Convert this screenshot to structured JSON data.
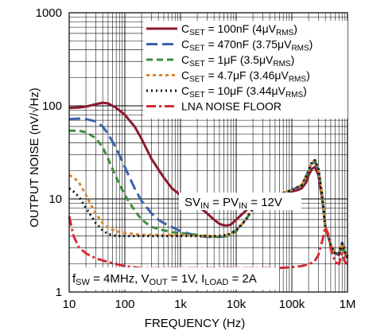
{
  "chart_data": {
    "type": "line",
    "xlabel": "FREQUENCY (Hz)",
    "ylabel": "OUTPUT NOISE (nV/√Hz)",
    "xscale": "log",
    "yscale": "log",
    "xlim": [
      10,
      1000000
    ],
    "ylim": [
      1,
      1000
    ],
    "grid": true,
    "x_tick_labels": [
      "10",
      "100",
      "1k",
      "10k",
      "100k",
      "1M"
    ],
    "x_tick_values": [
      10,
      100,
      1000,
      10000,
      100000,
      1000000
    ],
    "y_tick_labels": [
      "1",
      "10",
      "100",
      "1000"
    ],
    "y_tick_values": [
      1,
      10,
      100,
      1000
    ],
    "legend_position": "top-right",
    "annotations": {
      "supply": {
        "parts": [
          {
            "t": "SV",
            "s": "n"
          },
          {
            "t": "IN",
            "s": "sub"
          },
          {
            "t": " = PV",
            "s": "n"
          },
          {
            "t": "IN",
            "s": "sub"
          },
          {
            "t": " = 12V",
            "s": "n"
          }
        ]
      },
      "conditions": {
        "parts": [
          {
            "t": "f",
            "s": "n"
          },
          {
            "t": "SW",
            "s": "sub"
          },
          {
            "t": " = 4MHz, V",
            "s": "n"
          },
          {
            "t": "OUT",
            "s": "sub"
          },
          {
            "t": " = 1V, I",
            "s": "n"
          },
          {
            "t": "LOAD",
            "s": "sub"
          },
          {
            "t": " = 2A",
            "s": "n"
          }
        ]
      }
    },
    "series": [
      {
        "name": "C_SET = 100nF (4μV_RMS)",
        "legend_parts": [
          {
            "t": "C",
            "s": "n"
          },
          {
            "t": "SET",
            "s": "sub"
          },
          {
            "t": " = 100nF (4μV",
            "s": "n"
          },
          {
            "t": "RMS",
            "s": "sub"
          },
          {
            "t": ")",
            "s": "n"
          }
        ],
        "color": "#8b1a2e",
        "dash": "",
        "width": 3,
        "x": [
          10,
          15,
          20,
          30,
          40,
          50,
          70,
          100,
          150,
          200,
          300,
          500,
          700,
          1000,
          1500,
          2000,
          3000,
          4000,
          5000,
          6000,
          7000,
          8000,
          10000,
          15000,
          20000,
          30000,
          50000,
          70000,
          100000,
          130000,
          150000,
          180000,
          200000,
          230000,
          260000,
          300000,
          350000,
          400000,
          500000,
          600000,
          700000,
          800000,
          900000,
          1000000
        ],
        "y": [
          95,
          96,
          98,
          104,
          108,
          106,
          95,
          80,
          60,
          44,
          27,
          17,
          13,
          11,
          9.5,
          8.5,
          7,
          6,
          5.4,
          5.2,
          5.2,
          5.3,
          6,
          7.5,
          9,
          10,
          11,
          11.5,
          12,
          12.5,
          13,
          15,
          18,
          21,
          22,
          18,
          10,
          5,
          3.2,
          2.6,
          2.5,
          3.2,
          2.6,
          2.3
        ]
      },
      {
        "name": "C_SET = 470nF (3.75μV_RMS)",
        "legend_parts": [
          {
            "t": "C",
            "s": "n"
          },
          {
            "t": "SET",
            "s": "sub"
          },
          {
            "t": " = 470nF (3.75μV",
            "s": "n"
          },
          {
            "t": "RMS",
            "s": "sub"
          },
          {
            "t": ")",
            "s": "n"
          }
        ],
        "color": "#3a62ad",
        "dash": "14,6",
        "width": 3,
        "x": [
          10,
          15,
          20,
          30,
          40,
          50,
          70,
          100,
          150,
          200,
          300,
          400,
          500,
          700,
          1000,
          1500,
          2000,
          3000,
          5000,
          7000,
          10000,
          15000,
          20000,
          30000,
          50000,
          70000,
          100000,
          150000,
          200000,
          230000,
          260000,
          300000,
          350000,
          400000,
          500000,
          600000,
          700000,
          800000,
          900000,
          1000000
        ],
        "y": [
          72,
          73,
          72,
          68,
          60,
          50,
          35,
          22,
          13,
          9.5,
          7,
          6,
          5.5,
          5,
          4.5,
          4.2,
          4,
          3.9,
          3.9,
          4.0,
          4.6,
          6,
          8,
          9.5,
          11,
          11.5,
          12.5,
          14,
          20,
          24,
          25,
          20,
          11,
          5,
          3.2,
          2.6,
          2.6,
          3.4,
          2.7,
          2.4
        ]
      },
      {
        "name": "C_SET = 1μF (3.5μV_RMS)",
        "legend_parts": [
          {
            "t": "C",
            "s": "n"
          },
          {
            "t": "SET",
            "s": "sub"
          },
          {
            "t": " = 1μF (3.5μV",
            "s": "n"
          },
          {
            "t": "RMS",
            "s": "sub"
          },
          {
            "t": ")",
            "s": "n"
          }
        ],
        "color": "#3e8e3e",
        "dash": "8,5",
        "width": 3,
        "x": [
          10,
          15,
          20,
          30,
          40,
          50,
          70,
          100,
          150,
          200,
          300,
          500,
          700,
          1000,
          1500,
          2000,
          3000,
          5000,
          7000,
          10000,
          15000,
          20000,
          30000,
          50000,
          70000,
          100000,
          150000,
          200000,
          230000,
          260000,
          300000,
          350000,
          400000,
          500000,
          600000,
          700000,
          800000,
          900000,
          1000000
        ],
        "y": [
          54,
          54,
          52,
          45,
          36,
          27,
          17,
          11,
          7.5,
          6,
          5,
          4.6,
          4.4,
          4.3,
          4.2,
          4.1,
          4.0,
          3.9,
          4.0,
          4.5,
          6,
          8,
          9.5,
          11,
          11.5,
          12.5,
          14,
          20,
          25,
          26,
          21,
          11,
          5,
          3.2,
          2.6,
          2.6,
          3.3,
          2.7,
          2.4
        ]
      },
      {
        "name": "C_SET = 4.7μF (3.46μV_RMS)",
        "legend_parts": [
          {
            "t": "C",
            "s": "n"
          },
          {
            "t": "SET",
            "s": "sub"
          },
          {
            "t": " = 4.7μF (3.46μV",
            "s": "n"
          },
          {
            "t": "RMS",
            "s": "sub"
          },
          {
            "t": ")",
            "s": "n"
          }
        ],
        "color": "#d8862e",
        "dash": "4,4",
        "width": 3,
        "x": [
          10,
          12,
          15,
          20,
          25,
          30,
          40,
          50,
          70,
          100,
          150,
          200,
          300,
          500,
          1000,
          2000,
          3000,
          5000,
          7000,
          10000,
          15000,
          20000,
          30000,
          50000,
          70000,
          100000,
          150000,
          200000,
          230000,
          260000,
          300000,
          350000,
          400000,
          500000,
          600000,
          700000,
          800000,
          900000,
          1000000
        ],
        "y": [
          18,
          17,
          15,
          11,
          8.5,
          7,
          5.5,
          4.9,
          4.5,
          4.3,
          4.2,
          4.1,
          4.1,
          4.1,
          4.1,
          4.0,
          4.0,
          4.0,
          4.1,
          4.6,
          6,
          8,
          9.5,
          11,
          11.5,
          12.5,
          14,
          20,
          25,
          26,
          21,
          11,
          5,
          3.2,
          2.6,
          2.6,
          3.3,
          2.7,
          2.4
        ]
      },
      {
        "name": "C_SET = 10μF (3.44μV_RMS)",
        "legend_parts": [
          {
            "t": "C",
            "s": "n"
          },
          {
            "t": "SET",
            "s": "sub"
          },
          {
            "t": " = 10μF (3.44μV",
            "s": "n"
          },
          {
            "t": "RMS",
            "s": "sub"
          },
          {
            "t": ")",
            "s": "n"
          }
        ],
        "color": "#111111",
        "dash": "2,4",
        "width": 3,
        "x": [
          10,
          12,
          15,
          20,
          25,
          30,
          40,
          50,
          70,
          100,
          150,
          200,
          300,
          500,
          1000,
          2000,
          3000,
          5000,
          7000,
          10000,
          15000,
          20000,
          30000,
          50000,
          70000,
          100000,
          150000,
          200000,
          230000,
          260000,
          300000,
          350000,
          400000,
          500000,
          600000,
          700000,
          800000,
          900000,
          1000000
        ],
        "y": [
          13,
          12,
          10.5,
          8,
          6.5,
          5.5,
          4.6,
          4.2,
          4.0,
          4.0,
          4.0,
          4.0,
          4.0,
          4.0,
          4.0,
          4.0,
          4.0,
          4.0,
          4.1,
          4.6,
          6,
          8,
          9.5,
          11,
          11.5,
          12.5,
          14,
          20,
          25,
          26,
          21,
          11,
          5,
          3.2,
          2.6,
          2.6,
          3.3,
          2.7,
          2.4
        ]
      },
      {
        "name": "LNA NOISE FLOOR",
        "legend_parts": [
          {
            "t": "LNA NOISE FLOOR",
            "s": "n"
          }
        ],
        "color": "#d42a37",
        "dash": "12,4,3,4",
        "width": 3,
        "x": [
          10,
          12,
          15,
          20,
          30,
          50,
          100,
          200,
          500,
          1000,
          2000,
          5000,
          10000,
          20000,
          50000,
          100000,
          150000,
          200000,
          250000,
          300000,
          350000,
          400000,
          450000,
          500000,
          600000,
          700000,
          800000,
          900000,
          1000000
        ],
        "y": [
          6.5,
          4.0,
          3.0,
          2.6,
          2.3,
          2.1,
          1.9,
          1.8,
          1.8,
          1.8,
          1.8,
          1.8,
          1.8,
          1.8,
          1.8,
          1.85,
          1.9,
          2.0,
          2.1,
          2.5,
          3.5,
          5.0,
          4.2,
          2.9,
          2.1,
          2.0,
          2.6,
          2.1,
          2.0
        ]
      }
    ]
  }
}
